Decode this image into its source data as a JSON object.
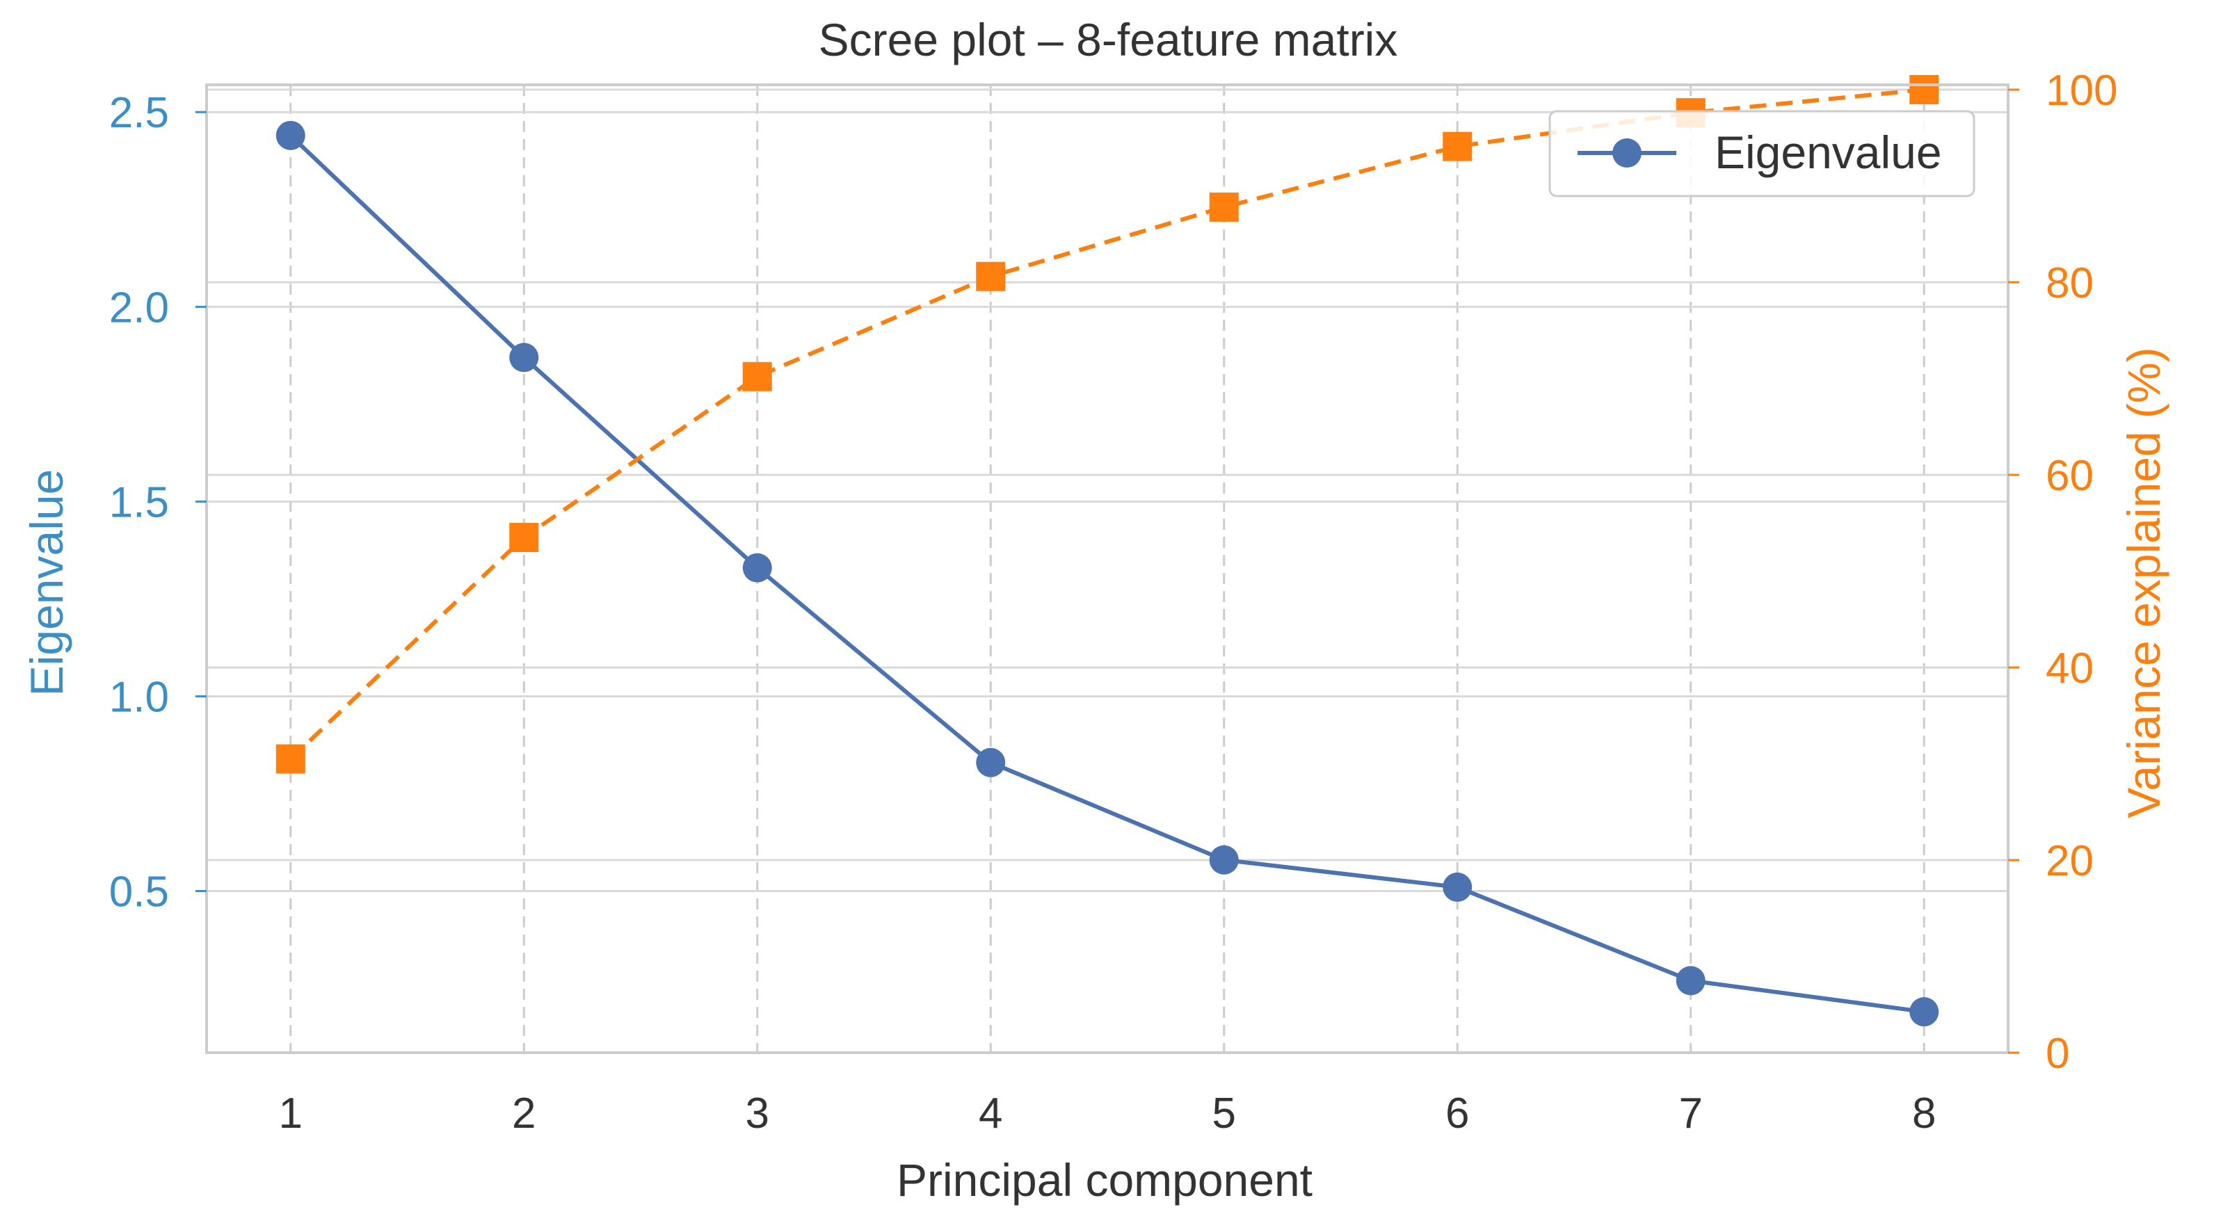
{
  "chart_data": {
    "type": "line",
    "title": "Scree plot – 8-feature matrix",
    "xlabel": "Principal component",
    "ylabel_left": "Eigenvalue",
    "ylabel_right": "Variance explained (%)",
    "x": [
      1,
      2,
      3,
      4,
      5,
      6,
      7,
      8
    ],
    "x_ticks": [
      "1",
      "2",
      "3",
      "4",
      "5",
      "6",
      "7",
      "8"
    ],
    "xlim": [
      0.64,
      8.36
    ],
    "ylim_left": [
      0.085,
      2.57
    ],
    "ylim_right": [
      0,
      100.5
    ],
    "y_left_ticks": [
      "0.5",
      "1.0",
      "1.5",
      "2.0",
      "2.5"
    ],
    "y_left_tick_values": [
      0.5,
      1.0,
      1.5,
      2.0,
      2.5
    ],
    "y_right_ticks": [
      "0",
      "20",
      "40",
      "60",
      "80",
      "100"
    ],
    "y_right_tick_values": [
      0,
      20,
      40,
      60,
      80,
      100
    ],
    "grid": true,
    "legend": {
      "position": "top-right",
      "entries": [
        "Eigenvalue"
      ]
    },
    "series": [
      {
        "name": "Eigenvalue",
        "axis": "left",
        "color": "#4c72b0",
        "marker": "circle",
        "line_style": "solid",
        "values": [
          2.44,
          1.87,
          1.33,
          0.83,
          0.58,
          0.51,
          0.27,
          0.19
        ]
      },
      {
        "axis": "right",
        "color": "#ff7f0e",
        "marker": "square",
        "line_style": "dashed",
        "values": [
          30.5,
          53.5,
          70.2,
          80.6,
          87.8,
          94.1,
          97.6,
          100.0
        ]
      }
    ],
    "colors": {
      "left_axis_text": "#3a8fc8",
      "right_axis_text": "#ff7f0e",
      "grid": "#d9d9d9",
      "frame": "#cccccc",
      "text": "#333333"
    }
  }
}
